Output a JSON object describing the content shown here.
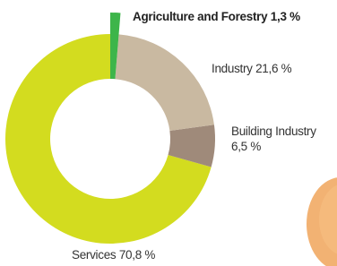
{
  "chart_data": {
    "type": "donut",
    "categories": [
      "Agriculture and Forestry",
      "Industry",
      "Building Industry",
      "Services"
    ],
    "values": [
      1.3,
      21.6,
      6.5,
      70.8
    ],
    "value_labels": [
      "1,3 %",
      "21,6 %",
      "6,5 %",
      "70,8 %"
    ],
    "colors": [
      "#3db54a",
      "#c9b9a1",
      "#9f8a7a",
      "#d3dc1f"
    ]
  }
}
